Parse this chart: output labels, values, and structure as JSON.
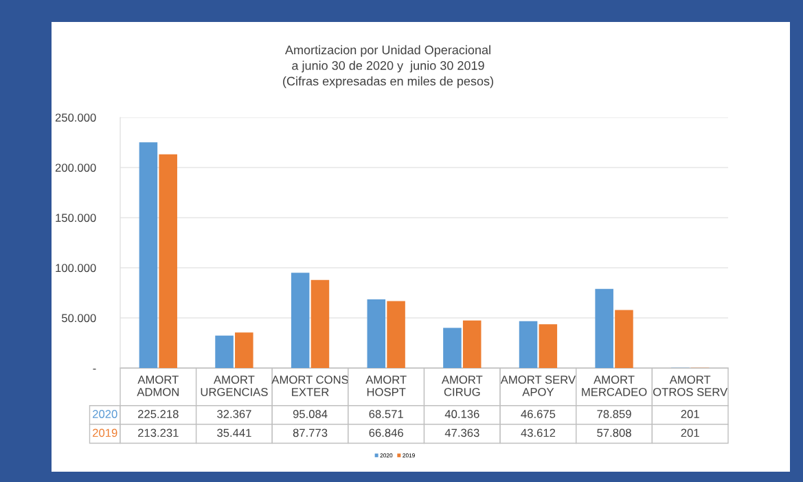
{
  "chart_data": {
    "type": "bar",
    "title": "Amortizacion por Unidad Operacional\na junio 30 de 2020 y  junio 30 2019\n(Cifras expresadas en miles de pesos)",
    "categories": [
      "AMORT ADMON",
      "AMORT URGENCIAS",
      "AMORT CONS EXTER",
      "AMORT HOSPT",
      "AMORT CIRUG",
      "AMORT SERV APOY",
      "AMORT MERCADEO",
      "AMORT OTROS SERV"
    ],
    "series": [
      {
        "name": "2020",
        "color": "#5b9bd5",
        "values": [
          225218,
          32367,
          95084,
          68571,
          40136,
          46675,
          78859,
          201
        ],
        "value_labels": [
          "225.218",
          "32.367",
          "95.084",
          "68.571",
          "40.136",
          "46.675",
          "78.859",
          "201"
        ]
      },
      {
        "name": "2019",
        "color": "#ed7d31",
        "values": [
          213231,
          35441,
          87773,
          66846,
          47363,
          43612,
          57808,
          201
        ],
        "value_labels": [
          "213.231",
          "35.441",
          "87.773",
          "66.846",
          "47.363",
          "43.612",
          "57.808",
          "201"
        ]
      }
    ],
    "ylim": [
      0,
      250000
    ],
    "yticks": [
      {
        "value": 0,
        "label": "-"
      },
      {
        "value": 50000,
        "label": "50.000"
      },
      {
        "value": 100000,
        "label": "100.000"
      },
      {
        "value": 150000,
        "label": "150.000"
      },
      {
        "value": 200000,
        "label": "200.000"
      },
      {
        "value": 250000,
        "label": "250.000"
      }
    ],
    "grid": "y",
    "legend": "bottom",
    "tick_labels": "y"
  }
}
